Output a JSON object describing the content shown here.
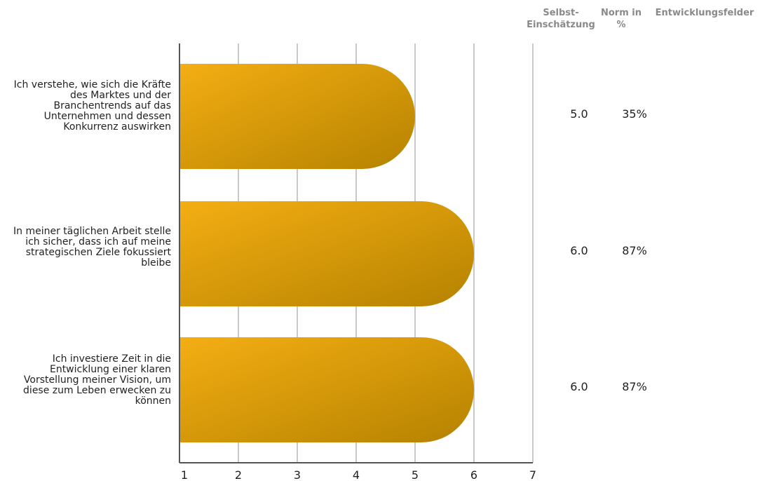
{
  "headers": {
    "self_assessment": "Selbst-\nEinschätzung",
    "norm": "Norm in\n%",
    "development": "Entwicklungsfelder"
  },
  "chart_data": {
    "type": "bar",
    "orientation": "horizontal",
    "categories": [
      "Ich verstehe, wie sich die Kräfte des Marktes und der Branchentrends auf das Unternehmen und dessen Konkurrenz auswirken",
      "In meiner täglichen Arbeit stelle ich sicher, dass ich auf meine strategischen Ziele fokussiert bleibe",
      "Ich investiere Zeit in die Entwicklung einer klaren Vorstellung meiner Vision, um diese zum Leben erwecken zu können"
    ],
    "values": [
      5,
      6,
      6
    ],
    "xlim": [
      1,
      7
    ],
    "xticks": [
      "1",
      "2",
      "3",
      "4",
      "5",
      "6",
      "7"
    ],
    "grid": true,
    "bar_color_start": "#f4ae13",
    "bar_color_end": "#b58200"
  },
  "rows": [
    {
      "self": "5.0",
      "norm": "35%"
    },
    {
      "self": "6.0",
      "norm": "87%"
    },
    {
      "self": "6.0",
      "norm": "87%"
    }
  ]
}
